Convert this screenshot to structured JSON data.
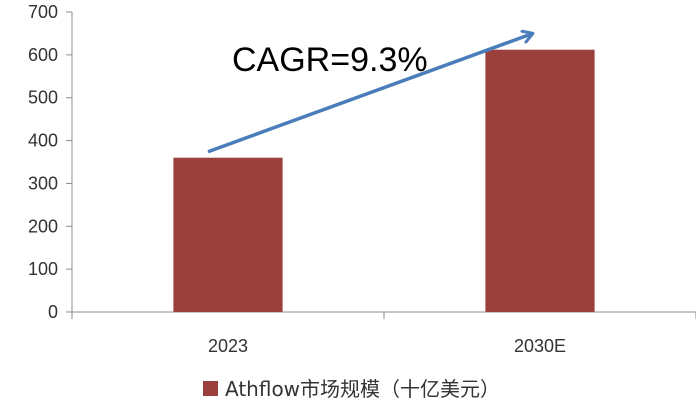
{
  "chart_data": {
    "type": "bar",
    "categories": [
      "2023",
      "2030E"
    ],
    "series": [
      {
        "name": "Athflow市场规模（十亿美元）",
        "values": [
          360,
          612
        ],
        "color": "#9b3f3c"
      }
    ],
    "ylim": [
      0,
      700
    ],
    "yticks": [
      0,
      100,
      200,
      300,
      400,
      500,
      600,
      700
    ],
    "grid": false,
    "legend_position": "bottom",
    "annotation": {
      "text": "CAGR=9.3%",
      "arrow_color": "#4a7ebb"
    }
  }
}
